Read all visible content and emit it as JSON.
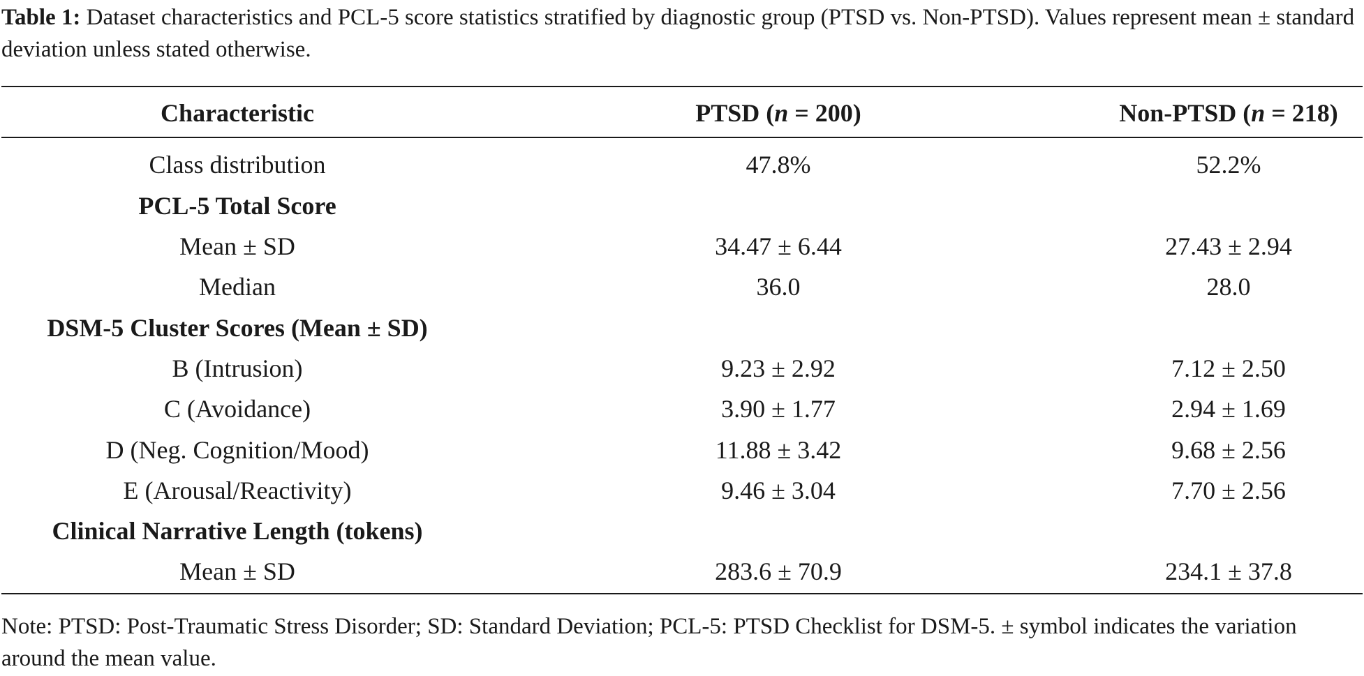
{
  "caption": {
    "label": "Table 1:",
    "text": "Dataset characteristics and PCL-5 score statistics stratified by diagnostic group (PTSD vs. Non-PTSD). Values represent mean ± standard deviation unless stated otherwise."
  },
  "header": {
    "col0": "Characteristic",
    "col1_prefix": "PTSD (",
    "col1_n": "n",
    "col1_suffix": " = 200)",
    "col2_prefix": "Non-PTSD (",
    "col2_n": "n",
    "col2_suffix": " = 218)"
  },
  "rows": [
    {
      "label": "Class distribution",
      "ptsd": "47.8%",
      "non_ptsd": "52.2%"
    },
    {
      "label": "PCL-5 Total Score",
      "ptsd": "",
      "non_ptsd": ""
    },
    {
      "label": "Mean ± SD",
      "ptsd": "34.47 ± 6.44",
      "non_ptsd": "27.43 ± 2.94"
    },
    {
      "label": "Median",
      "ptsd": "36.0",
      "non_ptsd": "28.0"
    },
    {
      "label": "DSM-5 Cluster Scores (Mean ± SD)",
      "ptsd": "",
      "non_ptsd": ""
    },
    {
      "label": "B (Intrusion)",
      "ptsd": "9.23 ± 2.92",
      "non_ptsd": "7.12 ± 2.50"
    },
    {
      "label": "C (Avoidance)",
      "ptsd": "3.90 ± 1.77",
      "non_ptsd": "2.94 ± 1.69"
    },
    {
      "label": "D (Neg. Cognition/Mood)",
      "ptsd": "11.88 ± 3.42",
      "non_ptsd": "9.68 ± 2.56"
    },
    {
      "label": "E (Arousal/Reactivity)",
      "ptsd": "9.46 ± 3.04",
      "non_ptsd": "7.70 ± 2.56"
    },
    {
      "label": "Clinical Narrative Length (tokens)",
      "ptsd": "",
      "non_ptsd": ""
    },
    {
      "label": "Mean ± SD",
      "ptsd": "283.6 ± 70.9",
      "non_ptsd": "234.1 ± 37.8"
    }
  ],
  "note": "Note: PTSD: Post-Traumatic Stress Disorder; SD: Standard Deviation; PCL-5: PTSD Checklist for DSM-5. ± symbol indicates the variation around the mean value."
}
